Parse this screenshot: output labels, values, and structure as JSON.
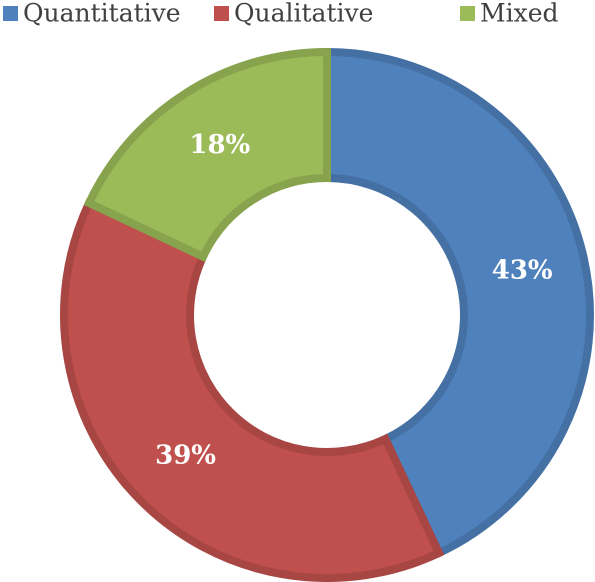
{
  "chart_data": {
    "type": "donut",
    "categories": [
      "Quantitative",
      "Qualitative",
      "Mixed"
    ],
    "values": [
      43,
      39,
      18
    ],
    "value_labels": [
      "43%",
      "39%",
      "18%"
    ],
    "colors": [
      "#4f81bd",
      "#c0504d",
      "#9bbb59"
    ],
    "legend": "top"
  }
}
